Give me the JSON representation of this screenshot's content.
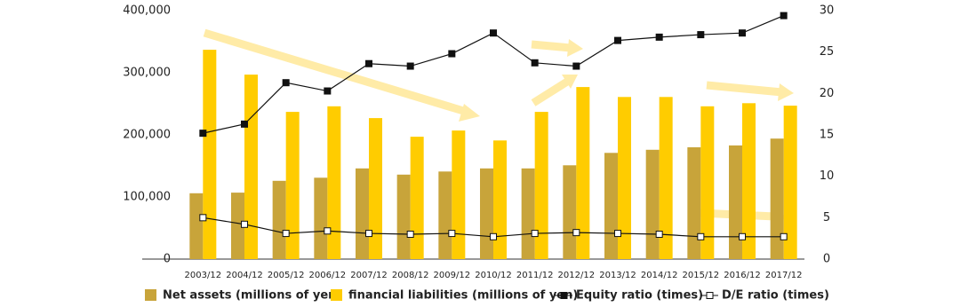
{
  "chart_data": {
    "type": "bar",
    "categories": [
      "2003/12",
      "2004/12",
      "2005/12",
      "2006/12",
      "2007/12",
      "2008/12",
      "2009/12",
      "2010/12",
      "2011/12",
      "2012/12",
      "2013/12",
      "2014/12",
      "2015/12",
      "2016/12",
      "2017/12"
    ],
    "series": [
      {
        "name": "Net assets (millions of yen)",
        "type": "bar",
        "color": "#c8a43a",
        "values": [
          106000,
          107000,
          126000,
          131000,
          146000,
          136000,
          141000,
          146000,
          146000,
          151000,
          171000,
          176000,
          180000,
          183000,
          194000
        ]
      },
      {
        "name": "financial liabilities (millions of yen)",
        "type": "bar",
        "color": "#ffcc00",
        "values": [
          337000,
          297000,
          237000,
          246000,
          227000,
          197000,
          207000,
          191000,
          237000,
          277000,
          261000,
          261000,
          246000,
          251000,
          247000
        ]
      },
      {
        "name": "Equity ratio (times)",
        "type": "line",
        "axis": "y2",
        "color": "#111111",
        "marker_fill": "#111111",
        "values": [
          15.2,
          16.3,
          21.3,
          20.3,
          23.6,
          23.3,
          24.8,
          27.3,
          23.7,
          23.3,
          26.4,
          26.8,
          27.1,
          27.3,
          29.4
        ]
      },
      {
        "name": "D/E ratio (times)",
        "type": "line",
        "axis": "y2",
        "color": "#111111",
        "marker_fill": "#ffffff",
        "values": [
          5.0,
          4.2,
          3.1,
          3.4,
          3.1,
          3.0,
          3.1,
          2.7,
          3.1,
          3.2,
          3.1,
          3.0,
          2.7,
          2.7,
          2.7
        ]
      }
    ],
    "ylim": [
      0,
      400000
    ],
    "yticks": [
      0,
      {
        "value": 100000,
        "label": "100,000"
      },
      {
        "value": 200000,
        "label": "200,000"
      },
      {
        "value": 300000,
        "label": "300,000"
      },
      {
        "value": 400000,
        "label": "400,000"
      }
    ],
    "y2lim": [
      0,
      30
    ],
    "y2ticks": [
      0,
      5,
      10,
      15,
      20,
      25,
      30
    ],
    "grid": false,
    "legend": "bottom"
  }
}
